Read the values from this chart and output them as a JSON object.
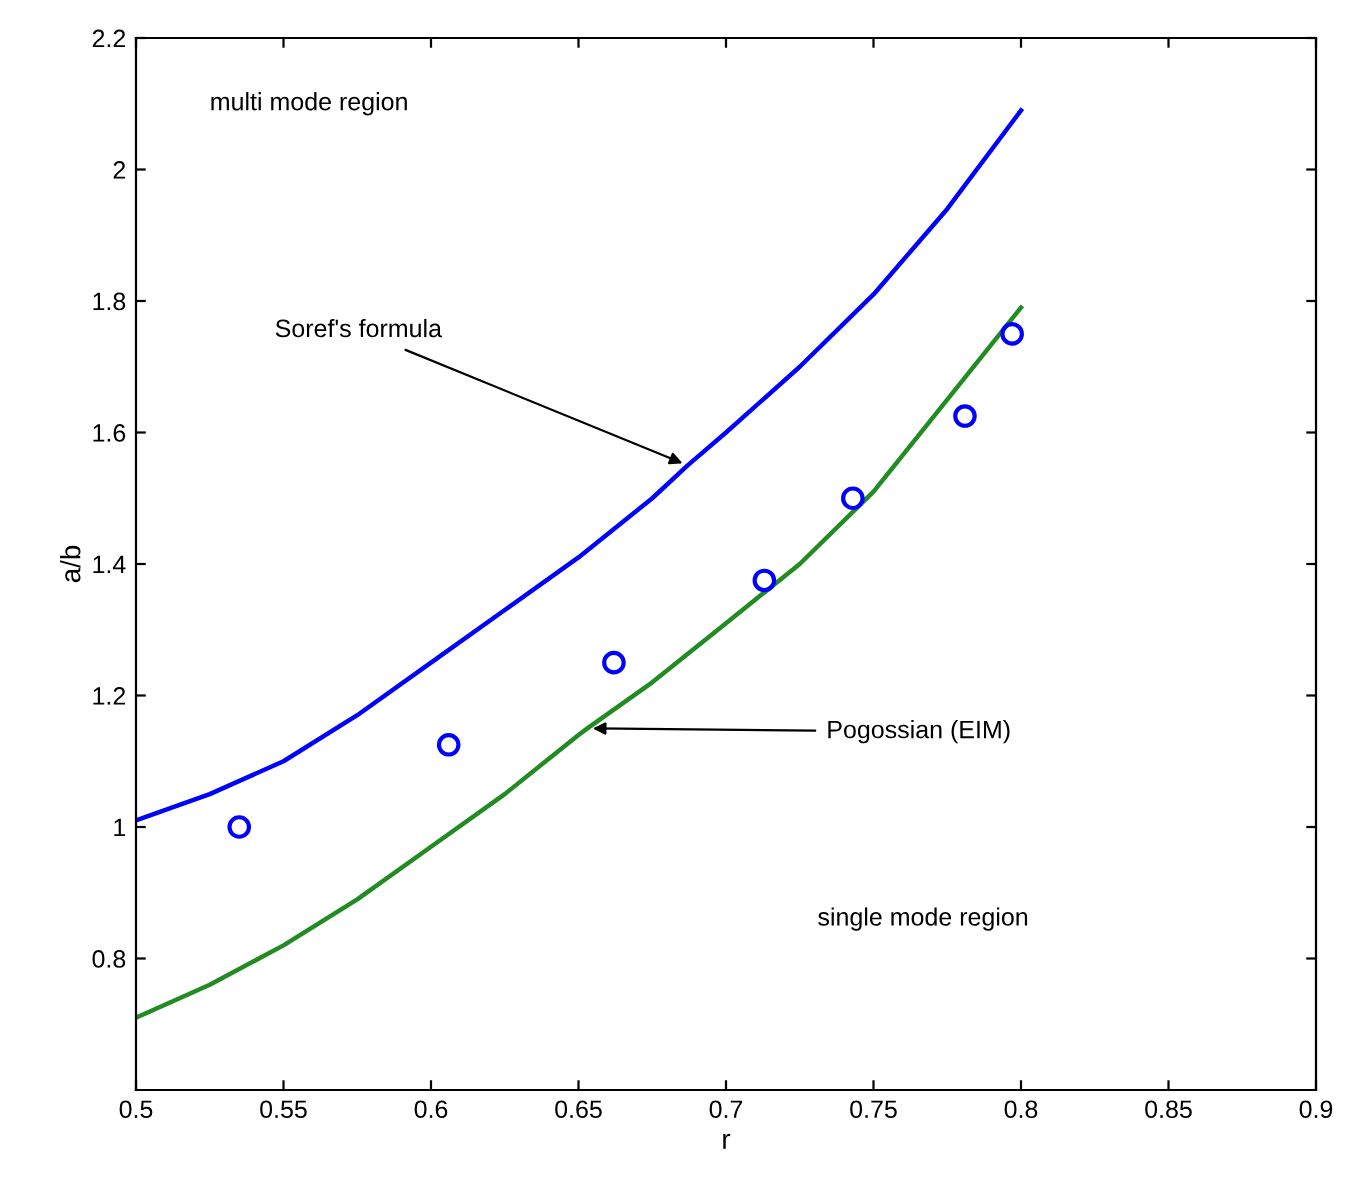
{
  "chart_data": {
    "type": "line",
    "xlabel": "r",
    "ylabel": "a/b",
    "xlim": [
      0.5,
      0.9
    ],
    "ylim": [
      0.6,
      2.2
    ],
    "xticks": [
      0.5,
      0.55,
      0.6,
      0.65,
      0.7,
      0.75,
      0.8,
      0.85,
      0.9
    ],
    "yticks": [
      0.8,
      1,
      1.2,
      1.4,
      1.6,
      1.8,
      2,
      2.2
    ],
    "grid": false,
    "legend": false,
    "series": [
      {
        "color": "#0000ff",
        "x": [
          0.5,
          0.525,
          0.55,
          0.575,
          0.6,
          0.625,
          0.65,
          0.675,
          0.687,
          0.7,
          0.725,
          0.75,
          0.775,
          0.8
        ],
        "values": [
          1.01,
          1.05,
          1.1,
          1.17,
          1.25,
          1.33,
          1.41,
          1.5,
          1.55,
          1.6,
          1.7,
          1.81,
          1.94,
          2.09
        ]
      },
      {
        "color": "#228b22",
        "x": [
          0.5,
          0.525,
          0.55,
          0.575,
          0.6,
          0.625,
          0.65,
          0.653,
          0.675,
          0.7,
          0.725,
          0.75,
          0.775,
          0.8
        ],
        "values": [
          0.71,
          0.76,
          0.82,
          0.89,
          0.97,
          1.05,
          1.14,
          1.15,
          1.22,
          1.31,
          1.4,
          1.51,
          1.65,
          1.79
        ]
      },
      {
        "type": "scatter",
        "color": "#0000ff",
        "marker": "circle",
        "x": [
          0.535,
          0.606,
          0.662,
          0.713,
          0.743,
          0.781,
          0.797
        ],
        "values": [
          1.0,
          1.125,
          1.25,
          1.375,
          1.5,
          1.625,
          1.75
        ]
      }
    ],
    "annotations": [
      "multi mode region",
      "single mode region",
      {
        "text": "Soref's formula",
        "x": 0.687,
        "y": 1.55
      },
      {
        "text": "Pogossian (EIM)",
        "x": 0.653,
        "y": 1.15
      }
    ]
  }
}
